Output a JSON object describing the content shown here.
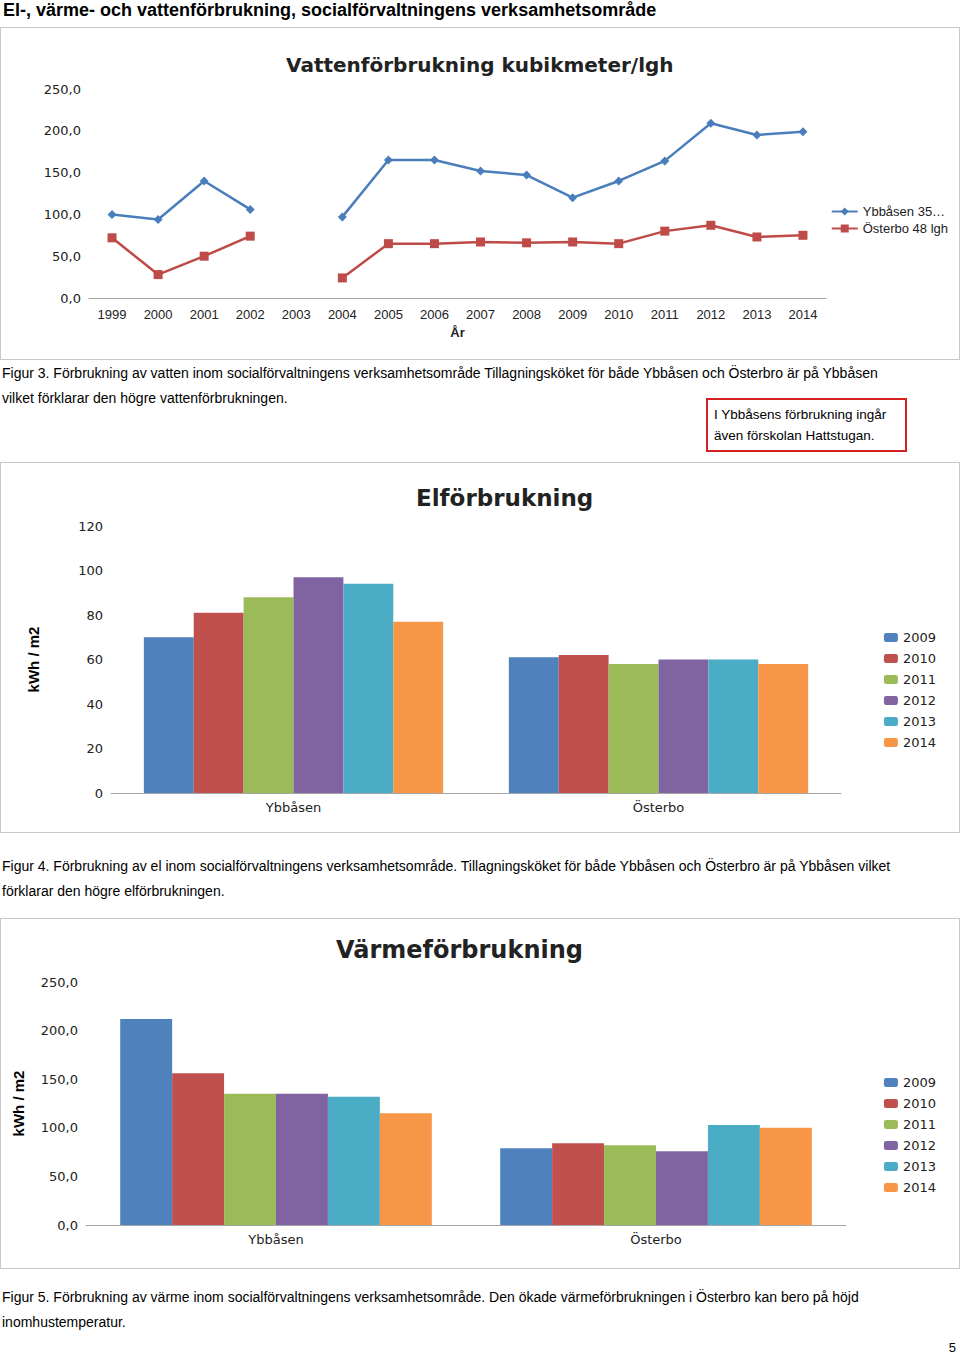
{
  "header": "El-, värme- och vattenförbrukning, socialförvaltningens verksamhetsområde",
  "chart_data": [
    {
      "type": "line",
      "title": "Vattenförbrukning kubikmeter/lgh",
      "x_label": "År",
      "categories": [
        "1999",
        "2000",
        "2001",
        "2002",
        "2003",
        "2004",
        "2005",
        "2006",
        "2007",
        "2008",
        "2009",
        "2010",
        "2011",
        "2012",
        "2013",
        "2014"
      ],
      "series": [
        {
          "name": "Ybbåsen 35…",
          "color": "#4a7ebb",
          "marker": "diamond",
          "values": [
            100,
            94,
            140,
            106,
            null,
            97,
            165,
            165,
            152,
            147,
            120,
            140,
            164,
            209,
            195,
            199
          ]
        },
        {
          "name": "Österbo 48 lgh",
          "color": "#be4b48",
          "marker": "square",
          "values": [
            72,
            28,
            50,
            74,
            null,
            24,
            65,
            65,
            67,
            66,
            67,
            65,
            80,
            87,
            73,
            75
          ]
        }
      ],
      "ylim": [
        0,
        250
      ],
      "yticks": [
        {
          "value": 0,
          "label": "0,0"
        },
        {
          "value": 50,
          "label": "50,0"
        },
        {
          "value": 100,
          "label": "100,0"
        },
        {
          "value": 150,
          "label": "150,0"
        },
        {
          "value": 200,
          "label": "200,0"
        },
        {
          "value": 250,
          "label": "250,0"
        }
      ],
      "grid": false,
      "legend": "right"
    },
    {
      "type": "bar",
      "title": "Elförbrukning",
      "y_label": "kWh / m2",
      "categories": [
        "Ybbåsen",
        "Österbo"
      ],
      "series": [
        {
          "name": "2009",
          "color": "#4f81bd",
          "values": [
            70,
            61
          ]
        },
        {
          "name": "2010",
          "color": "#c0504d",
          "values": [
            81,
            62
          ]
        },
        {
          "name": "2011",
          "color": "#9bbb59",
          "values": [
            88,
            58
          ]
        },
        {
          "name": "2012",
          "color": "#8064a2",
          "values": [
            97,
            60
          ]
        },
        {
          "name": "2013",
          "color": "#4bacc6",
          "values": [
            94,
            60
          ]
        },
        {
          "name": "2014",
          "color": "#f79646",
          "values": [
            77,
            58
          ]
        }
      ],
      "ylim": [
        0,
        120
      ],
      "yticks": [
        0,
        20,
        40,
        60,
        80,
        100,
        120
      ],
      "grid": false,
      "legend": "right"
    },
    {
      "type": "bar",
      "title": "Värmeförbrukning",
      "y_label": "kWh / m2",
      "categories": [
        "Ybbåsen",
        "Österbo"
      ],
      "series": [
        {
          "name": "2009",
          "color": "#4f81bd",
          "values": [
            212,
            79
          ]
        },
        {
          "name": "2010",
          "color": "#c0504d",
          "values": [
            156,
            84
          ]
        },
        {
          "name": "2011",
          "color": "#9bbb59",
          "values": [
            135,
            82
          ]
        },
        {
          "name": "2012",
          "color": "#8064a2",
          "values": [
            135,
            76
          ]
        },
        {
          "name": "2013",
          "color": "#4bacc6",
          "values": [
            132,
            103
          ]
        },
        {
          "name": "2014",
          "color": "#f79646",
          "values": [
            115,
            100
          ]
        }
      ],
      "ylim": [
        0,
        250
      ],
      "yticks": [
        {
          "value": 0,
          "label": "0,0"
        },
        {
          "value": 50,
          "label": "50,0"
        },
        {
          "value": 100,
          "label": "100,0"
        },
        {
          "value": 150,
          "label": "150,0"
        },
        {
          "value": 200,
          "label": "200,0"
        },
        {
          "value": 250,
          "label": "250,0"
        }
      ],
      "grid": false,
      "legend": "right"
    }
  ],
  "captions": [
    [
      "Figur 3. Förbrukning av vatten inom socialförvaltningens verksamhetsområde Tillagningsköket för både Ybbåsen och Österbro är på Ybbåsen",
      "vilket förklarar den högre vattenförbrukningen."
    ],
    [
      "Figur 4. Förbrukning av el inom socialförvaltningens verksamhetsområde.  Tillagningsköket för både Ybbåsen och Österbro är på Ybbåsen vilket",
      "förklarar den högre elförbrukningen."
    ],
    [
      "Figur 5. Förbrukning av värme inom socialförvaltningens verksamhetsområde. Den ökade värmeförbrukningen i Österbro kan bero på höjd",
      "inomhustemperatur."
    ]
  ],
  "note": [
    "I Ybbåsens förbrukning ingår",
    "även förskolan Hattstugan."
  ],
  "page_number": "5"
}
